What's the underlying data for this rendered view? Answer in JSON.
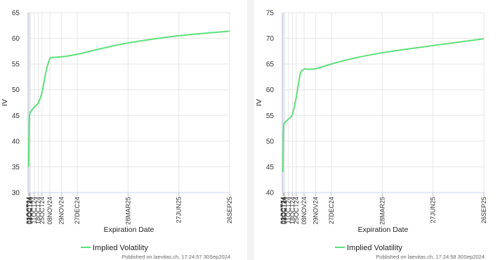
{
  "chart_data": [
    {
      "type": "line",
      "xlabel": "Expiration Date",
      "ylabel": "IV",
      "ylim": [
        30,
        65
      ],
      "yticks": [
        30,
        35,
        40,
        45,
        50,
        55,
        60,
        65
      ],
      "x_domain": [
        "2024-09-30",
        "2025-09-26"
      ],
      "grid": true,
      "legend_position": "bottom-center",
      "x_ticks": [
        {
          "label": "01OCT24",
          "date": "2024-10-01"
        },
        {
          "label": "02OCT24",
          "date": "2024-10-02"
        },
        {
          "label": "03OCT24",
          "date": "2024-10-03"
        },
        {
          "label": "04OCT24",
          "date": "2024-10-04"
        },
        {
          "label": "11OCT24",
          "date": "2024-10-11"
        },
        {
          "label": "18OCT24",
          "date": "2024-10-18"
        },
        {
          "label": "25OCT24",
          "date": "2024-10-25"
        },
        {
          "label": "08NOV24",
          "date": "2024-11-08"
        },
        {
          "label": "29NOV24",
          "date": "2024-11-29"
        },
        {
          "label": "27DEC24",
          "date": "2024-12-27"
        },
        {
          "label": "28MAR25",
          "date": "2025-03-28"
        },
        {
          "label": "27JUN25",
          "date": "2025-06-27"
        },
        {
          "label": "26SEP25",
          "date": "2025-09-26"
        }
      ],
      "series": [
        {
          "name": "Implied Volatility",
          "color": "#5ee07a",
          "x": [
            "2024-10-01",
            "2024-10-02",
            "2024-10-03",
            "2024-10-04",
            "2024-10-11",
            "2024-10-18",
            "2024-10-25",
            "2024-11-01",
            "2024-11-08",
            "2024-11-15",
            "2024-11-29",
            "2024-12-27",
            "2025-01-31",
            "2025-03-28",
            "2025-06-27",
            "2025-09-26"
          ],
          "y": [
            35.0,
            43.5,
            45.2,
            45.6,
            46.6,
            47.4,
            49.5,
            53.5,
            56.0,
            56.3,
            56.4,
            56.9,
            57.8,
            59.1,
            60.5,
            61.4
          ]
        }
      ],
      "credit": "Published on laevitas.ch, 17:24:57 30Sep2024"
    },
    {
      "type": "line",
      "xlabel": "Expiration Date",
      "ylabel": "IV",
      "ylim": [
        40,
        75
      ],
      "yticks": [
        40,
        45,
        50,
        55,
        60,
        65,
        70,
        75
      ],
      "x_domain": [
        "2024-09-30",
        "2025-09-26"
      ],
      "grid": true,
      "legend_position": "bottom-center",
      "x_ticks": [
        {
          "label": "01OCT24",
          "date": "2024-10-01"
        },
        {
          "label": "02OCT24",
          "date": "2024-10-02"
        },
        {
          "label": "03OCT24",
          "date": "2024-10-03"
        },
        {
          "label": "04OCT24",
          "date": "2024-10-04"
        },
        {
          "label": "11OCT24",
          "date": "2024-10-11"
        },
        {
          "label": "18OCT24",
          "date": "2024-10-18"
        },
        {
          "label": "25OCT24",
          "date": "2024-10-25"
        },
        {
          "label": "08NOV24",
          "date": "2024-11-08"
        },
        {
          "label": "29NOV24",
          "date": "2024-11-29"
        },
        {
          "label": "27DEC24",
          "date": "2024-12-27"
        },
        {
          "label": "28MAR25",
          "date": "2025-03-28"
        },
        {
          "label": "27JUN25",
          "date": "2025-06-27"
        },
        {
          "label": "26SEP25",
          "date": "2025-09-26"
        }
      ],
      "series": [
        {
          "name": "Implied Volatility",
          "color": "#5ee07a",
          "x": [
            "2024-10-01",
            "2024-10-02",
            "2024-10-03",
            "2024-10-04",
            "2024-10-11",
            "2024-10-18",
            "2024-10-25",
            "2024-11-01",
            "2024-11-08",
            "2024-11-15",
            "2024-11-29",
            "2024-12-27",
            "2025-01-31",
            "2025-03-28",
            "2025-06-27",
            "2025-09-26"
          ],
          "y": [
            44.0,
            52.0,
            53.3,
            53.6,
            54.3,
            55.2,
            58.5,
            63.0,
            64.0,
            64.0,
            64.1,
            65.0,
            66.0,
            67.2,
            68.6,
            69.9
          ]
        }
      ],
      "credit": "Published on laevitas.ch, 17:24:58 30Sep2024"
    }
  ]
}
